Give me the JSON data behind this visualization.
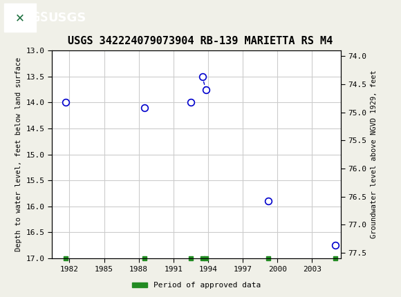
{
  "title": "USGS 342224079073904 RB-139 MARIETTA RS M4",
  "header_bg": "#1a6e3c",
  "header_text": "USGS",
  "ylabel_left": "Depth to water level, feet below land surface",
  "ylabel_right": "Groundwater level above NGVD 1929, feet",
  "ylim_left": [
    13.0,
    17.0
  ],
  "ylim_right": [
    73.9,
    77.6
  ],
  "xlim": [
    1980.5,
    2005.5
  ],
  "xticks": [
    1982,
    1985,
    1988,
    1991,
    1994,
    1997,
    2000,
    2003
  ],
  "yticks_left": [
    13.0,
    13.5,
    14.0,
    14.5,
    15.0,
    15.5,
    16.0,
    16.5,
    17.0
  ],
  "yticks_right": [
    77.5,
    77.0,
    76.5,
    76.0,
    75.5,
    75.0,
    74.5,
    74.0
  ],
  "data_x": [
    1981.7,
    1988.5,
    1992.5,
    1993.5,
    1993.8,
    1999.2,
    2005.0
  ],
  "data_y": [
    14.0,
    14.1,
    14.0,
    13.5,
    13.75,
    15.9,
    16.75
  ],
  "connected_indices": [
    3,
    4
  ],
  "marker_color": "#0000cc",
  "marker_face": "none",
  "marker_size": 7,
  "dashed_line_color": "#0000cc",
  "green_tick_x": [
    1981.7,
    1988.5,
    1992.5,
    1993.5,
    1993.8,
    1999.2,
    2005.0
  ],
  "legend_label": "Period of approved data",
  "legend_color": "#228B22",
  "bg_color": "#f0f0e8",
  "grid_color": "#cccccc",
  "axis_bg": "#ffffff"
}
